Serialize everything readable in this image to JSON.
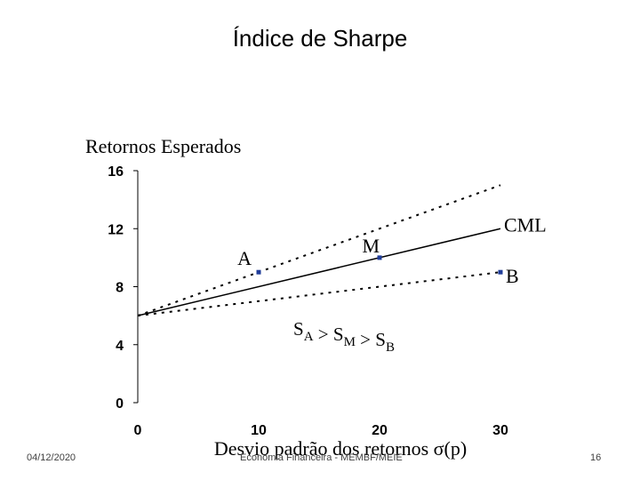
{
  "slide": {
    "title": "Índice de Sharpe"
  },
  "chart_data": {
    "type": "scatter",
    "ylabel": "Retornos Esperados",
    "xlabel": "Desvio padrão dos retornos σ(p)",
    "xlim": [
      0,
      30
    ],
    "ylim": [
      0,
      16
    ],
    "x_ticks": [
      "0",
      "10",
      "20",
      "30"
    ],
    "y_ticks": [
      "0",
      "4",
      "8",
      "12",
      "16"
    ],
    "points": [
      {
        "label": "A",
        "x": 10,
        "y": 9
      },
      {
        "label": "M",
        "x": 20,
        "y": 10
      },
      {
        "label": "B",
        "x": 30,
        "y": 9
      }
    ],
    "lines": [
      {
        "label": "CML",
        "style": "solid",
        "from": [
          0,
          6
        ],
        "to": [
          30,
          12
        ]
      },
      {
        "label": "",
        "style": "dotted",
        "from": [
          0,
          6
        ],
        "to": [
          30,
          15
        ]
      },
      {
        "label": "",
        "style": "dotted",
        "from": [
          0,
          6
        ],
        "to": [
          30,
          9
        ]
      }
    ],
    "annotation": {
      "parts": [
        [
          "S",
          "A"
        ],
        [
          " > S",
          "M"
        ],
        [
          " > S",
          "B"
        ]
      ]
    },
    "colors": {
      "points": "#1f3c99",
      "lines": "#000000"
    },
    "grid": false
  },
  "footer": {
    "date": "04/12/2020",
    "center": "Economia Financeira - MEMBF/MEIE",
    "page": "16"
  }
}
